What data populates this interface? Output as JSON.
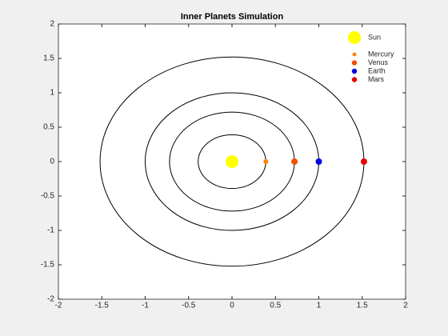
{
  "chart_data": {
    "type": "scatter",
    "title": "Inner Planets Simulation",
    "series": [
      {
        "name": "Sun",
        "color": "#ffff00",
        "x": [
          0
        ],
        "values": [
          0
        ],
        "size": [
          16
        ]
      },
      {
        "name": "Mercury",
        "color": "#ff8000",
        "x": [
          0.39
        ],
        "values": [
          0
        ],
        "size": [
          6
        ]
      },
      {
        "name": "Venus",
        "color": "#f05000",
        "x": [
          0.72
        ],
        "values": [
          0
        ],
        "size": [
          8
        ]
      },
      {
        "name": "Earth",
        "color": "#0000e6",
        "x": [
          1.0
        ],
        "values": [
          0
        ],
        "size": [
          8
        ]
      },
      {
        "name": "Mars",
        "color": "#e60000",
        "x": [
          1.52
        ],
        "values": [
          0
        ],
        "size": [
          8
        ]
      }
    ],
    "orbits": true,
    "xlim": [
      -2,
      2
    ],
    "ylim": [
      -2,
      2
    ],
    "xticks": [
      -2,
      -1.5,
      -1,
      -0.5,
      0,
      0.5,
      1,
      1.5,
      2
    ],
    "yticks": [
      -2,
      -1.5,
      -1,
      -0.5,
      0,
      0.5,
      1,
      1.5,
      2
    ],
    "legend": "top-right"
  }
}
